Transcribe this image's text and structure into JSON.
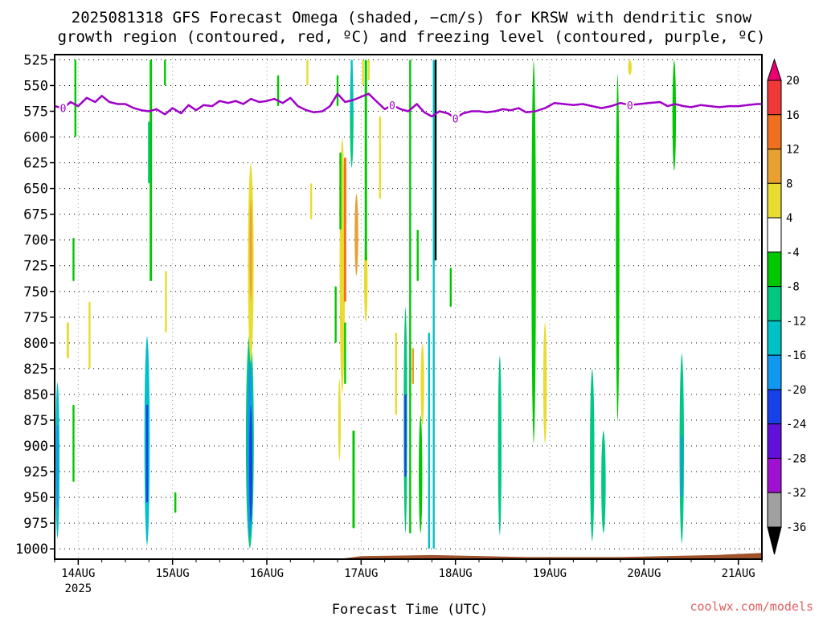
{
  "chart_data": {
    "type": "heatmap",
    "title_lines": [
      "2025081318 GFS Forecast Omega (shaded, −cm/s) for KRSW with dendritic snow",
      "growth region (contoured, red, ºC) and freezing level (contoured, purple, ºC)"
    ],
    "xlabel": "Forecast Time (UTC)",
    "x_ticks": [
      {
        "label": "14AUG",
        "year": "2025",
        "t": 0.25
      },
      {
        "label": "15AUG",
        "t": 1.25
      },
      {
        "label": "16AUG",
        "t": 2.25
      },
      {
        "label": "17AUG",
        "t": 3.25
      },
      {
        "label": "18AUG",
        "t": 4.25
      },
      {
        "label": "19AUG",
        "t": 5.25
      },
      {
        "label": "20AUG",
        "t": 6.25
      },
      {
        "label": "21AUG",
        "t": 7.25
      }
    ],
    "x_range": [
      0,
      7.5
    ],
    "y_levels": [
      "525",
      "550",
      "575",
      "600",
      "625",
      "650",
      "675",
      "700",
      "725",
      "750",
      "775",
      "800",
      "825",
      "850",
      "875",
      "900",
      "925",
      "950",
      "975",
      "1000"
    ],
    "y_range": [
      520,
      1010
    ],
    "colorbar": {
      "ticks": [
        "20",
        "16",
        "12",
        "8",
        "4",
        "-4",
        "-8",
        "-12",
        "-16",
        "-20",
        "-24",
        "-28",
        "-32",
        "-36"
      ],
      "colors": [
        "#e8006f",
        "#f03838",
        "#f07020",
        "#e8a030",
        "#e8dc30",
        "#ffffff",
        "#00c800",
        "#00c880",
        "#00c0c8",
        "#1098f0",
        "#1840e8",
        "#6010d8",
        "#a010d0",
        "#a0a0a0",
        "#000000"
      ]
    },
    "freezing_level": {
      "label": "0",
      "color": "#a000c8",
      "points": [
        [
          0.0,
          570
        ],
        [
          0.09,
          572
        ],
        [
          0.17,
          566
        ],
        [
          0.25,
          570
        ],
        [
          0.34,
          562
        ],
        [
          0.43,
          566
        ],
        [
          0.5,
          560
        ],
        [
          0.58,
          566
        ],
        [
          0.67,
          568
        ],
        [
          0.75,
          568
        ],
        [
          0.84,
          572
        ],
        [
          0.92,
          574
        ],
        [
          1.0,
          575
        ],
        [
          1.08,
          573
        ],
        [
          1.17,
          578
        ],
        [
          1.25,
          572
        ],
        [
          1.34,
          577
        ],
        [
          1.42,
          569
        ],
        [
          1.5,
          574
        ],
        [
          1.58,
          569
        ],
        [
          1.67,
          570
        ],
        [
          1.75,
          565
        ],
        [
          1.84,
          567
        ],
        [
          1.92,
          565
        ],
        [
          2.0,
          568
        ],
        [
          2.08,
          563
        ],
        [
          2.17,
          566
        ],
        [
          2.25,
          565
        ],
        [
          2.33,
          563
        ],
        [
          2.42,
          567
        ],
        [
          2.5,
          562
        ],
        [
          2.58,
          570
        ],
        [
          2.67,
          574
        ],
        [
          2.75,
          576
        ],
        [
          2.84,
          575
        ],
        [
          2.92,
          570
        ],
        [
          3.0,
          558
        ],
        [
          3.08,
          566
        ],
        [
          3.17,
          564
        ],
        [
          3.25,
          561
        ],
        [
          3.33,
          558
        ],
        [
          3.42,
          566
        ],
        [
          3.5,
          573
        ],
        [
          3.58,
          569
        ],
        [
          3.67,
          573
        ],
        [
          3.75,
          575
        ],
        [
          3.84,
          568
        ],
        [
          3.92,
          576
        ],
        [
          4.0,
          580
        ],
        [
          4.08,
          575
        ],
        [
          4.17,
          577
        ],
        [
          4.25,
          582
        ],
        [
          4.33,
          577
        ],
        [
          4.42,
          575
        ],
        [
          4.5,
          575
        ],
        [
          4.58,
          576
        ],
        [
          4.67,
          575
        ],
        [
          4.75,
          573
        ],
        [
          4.84,
          574
        ],
        [
          4.92,
          572
        ],
        [
          5.0,
          576
        ],
        [
          5.1,
          575
        ],
        [
          5.2,
          572
        ],
        [
          5.3,
          567
        ],
        [
          5.4,
          568
        ],
        [
          5.5,
          569
        ],
        [
          5.6,
          568
        ],
        [
          5.7,
          570
        ],
        [
          5.8,
          572
        ],
        [
          5.9,
          570
        ],
        [
          6.0,
          567
        ],
        [
          6.1,
          569
        ],
        [
          6.2,
          568
        ],
        [
          6.3,
          567
        ],
        [
          6.42,
          566
        ],
        [
          6.5,
          570
        ],
        [
          6.58,
          568
        ],
        [
          6.67,
          570
        ],
        [
          6.75,
          571
        ],
        [
          6.85,
          569
        ],
        [
          6.95,
          570
        ],
        [
          7.05,
          571
        ],
        [
          7.15,
          570
        ],
        [
          7.25,
          570
        ],
        [
          7.35,
          569
        ],
        [
          7.45,
          568
        ],
        [
          7.5,
          568
        ]
      ]
    },
    "surface_pressure": [
      [
        0.0,
        1010
      ],
      [
        0.5,
        1012
      ],
      [
        1.0,
        1011
      ],
      [
        2.0,
        1012
      ],
      [
        3.0,
        1010
      ],
      [
        3.25,
        1007
      ],
      [
        4.0,
        1006
      ],
      [
        5.0,
        1008
      ],
      [
        6.0,
        1008
      ],
      [
        7.0,
        1006
      ],
      [
        7.5,
        1004
      ]
    ],
    "omega_regions": [
      {
        "t": 0.03,
        "p0": 838,
        "p1": 990,
        "w": 0.045,
        "v": -12
      },
      {
        "t": 0.03,
        "p0": 880,
        "p1": 960,
        "w": 0.02,
        "v": -16
      },
      {
        "t": 0.22,
        "p0": 525,
        "p1": 600,
        "w": 0.02,
        "v": -6
      },
      {
        "t": 0.2,
        "p0": 698,
        "p1": 740,
        "w": 0.012,
        "v": -6
      },
      {
        "t": 0.2,
        "p0": 860,
        "p1": 935,
        "w": 0.012,
        "v": -6
      },
      {
        "t": 0.14,
        "p0": 780,
        "p1": 815,
        "w": 0.025,
        "v": 6
      },
      {
        "t": 0.37,
        "p0": 760,
        "p1": 825,
        "w": 0.02,
        "v": 6
      },
      {
        "t": 0.98,
        "p0": 793,
        "p1": 997,
        "w": 0.06,
        "v": -12
      },
      {
        "t": 0.98,
        "p0": 860,
        "p1": 955,
        "w": 0.02,
        "v": -20
      },
      {
        "t": 1.02,
        "p0": 525,
        "p1": 740,
        "w": 0.025,
        "v": -6
      },
      {
        "t": 1.0,
        "p0": 585,
        "p1": 645,
        "w": 0.02,
        "v": -8
      },
      {
        "t": 1.17,
        "p0": 525,
        "p1": 550,
        "w": 0.012,
        "v": -6
      },
      {
        "t": 1.18,
        "p0": 730,
        "p1": 790,
        "w": 0.015,
        "v": 6
      },
      {
        "t": 1.28,
        "p0": 945,
        "p1": 965,
        "w": 0.012,
        "v": -6
      },
      {
        "t": 2.07,
        "p0": 788,
        "p1": 1000,
        "w": 0.09,
        "v": -10
      },
      {
        "t": 2.07,
        "p0": 815,
        "p1": 990,
        "w": 0.055,
        "v": -16
      },
      {
        "t": 2.08,
        "p0": 860,
        "p1": 975,
        "w": 0.035,
        "v": -20
      },
      {
        "t": 2.08,
        "p0": 625,
        "p1": 820,
        "w": 0.065,
        "v": 6
      },
      {
        "t": 2.08,
        "p0": 660,
        "p1": 760,
        "w": 0.028,
        "v": 10
      },
      {
        "t": 2.68,
        "p0": 525,
        "p1": 550,
        "w": 0.015,
        "v": 6
      },
      {
        "t": 2.37,
        "p0": 540,
        "p1": 570,
        "w": 0.012,
        "v": -6
      },
      {
        "t": 3.0,
        "p0": 540,
        "p1": 570,
        "w": 0.012,
        "v": -6
      },
      {
        "t": 2.72,
        "p0": 645,
        "p1": 680,
        "w": 0.02,
        "v": 6
      },
      {
        "t": 3.05,
        "p0": 600,
        "p1": 850,
        "w": 0.06,
        "v": 6
      },
      {
        "t": 3.08,
        "p0": 620,
        "p1": 760,
        "w": 0.025,
        "v": 12
      },
      {
        "t": 3.03,
        "p0": 615,
        "p1": 690,
        "w": 0.015,
        "v": -6
      },
      {
        "t": 3.15,
        "p0": 525,
        "p1": 630,
        "w": 0.04,
        "v": -8
      },
      {
        "t": 3.15,
        "p0": 525,
        "p1": 580,
        "w": 0.015,
        "v": -12
      },
      {
        "t": 3.2,
        "p0": 655,
        "p1": 735,
        "w": 0.04,
        "v": 8
      },
      {
        "t": 3.3,
        "p0": 700,
        "p1": 780,
        "w": 0.04,
        "v": 6
      },
      {
        "t": 3.27,
        "p0": 525,
        "p1": 550,
        "w": 0.012,
        "v": 6
      },
      {
        "t": 2.98,
        "p0": 745,
        "p1": 800,
        "w": 0.02,
        "v": -6
      },
      {
        "t": 3.02,
        "p0": 835,
        "p1": 915,
        "w": 0.03,
        "v": 6
      },
      {
        "t": 3.08,
        "p0": 780,
        "p1": 840,
        "w": 0.015,
        "v": -6
      },
      {
        "t": 3.17,
        "p0": 885,
        "p1": 980,
        "w": 0.025,
        "v": -6
      },
      {
        "t": 3.3,
        "p0": 525,
        "p1": 720,
        "w": 0.025,
        "v": -6
      },
      {
        "t": 3.33,
        "p0": 525,
        "p1": 545,
        "w": 0.012,
        "v": 6
      },
      {
        "t": 3.45,
        "p0": 580,
        "p1": 660,
        "w": 0.015,
        "v": 6
      },
      {
        "t": 3.62,
        "p0": 790,
        "p1": 870,
        "w": 0.015,
        "v": 6
      },
      {
        "t": 3.72,
        "p0": 765,
        "p1": 985,
        "w": 0.04,
        "v": -10
      },
      {
        "t": 3.72,
        "p0": 850,
        "p1": 930,
        "w": 0.012,
        "v": -20
      },
      {
        "t": 3.77,
        "p0": 525,
        "p1": 985,
        "w": 0.012,
        "v": -6
      },
      {
        "t": 3.85,
        "p0": 690,
        "p1": 740,
        "w": 0.012,
        "v": -6
      },
      {
        "t": 3.9,
        "p0": 800,
        "p1": 880,
        "w": 0.04,
        "v": 6
      },
      {
        "t": 3.88,
        "p0": 870,
        "p1": 985,
        "w": 0.04,
        "v": -6
      },
      {
        "t": 3.97,
        "p0": 790,
        "p1": 1000,
        "w": 0.02,
        "v": -12
      },
      {
        "t": 4.02,
        "p0": 525,
        "p1": 1000,
        "w": 0.02,
        "v": -14
      },
      {
        "t": 4.04,
        "p0": 525,
        "p1": 720,
        "w": 0.006,
        "v": -36
      },
      {
        "t": 4.2,
        "p0": 727,
        "p1": 765,
        "w": 0.012,
        "v": -6
      },
      {
        "t": 3.8,
        "p0": 805,
        "p1": 840,
        "w": 0.012,
        "v": 10
      },
      {
        "t": 4.72,
        "p0": 812,
        "p1": 987,
        "w": 0.04,
        "v": -10
      },
      {
        "t": 5.08,
        "p0": 525,
        "p1": 898,
        "w": 0.05,
        "v": -7
      },
      {
        "t": 5.2,
        "p0": 780,
        "p1": 898,
        "w": 0.04,
        "v": 6
      },
      {
        "t": 5.7,
        "p0": 825,
        "p1": 993,
        "w": 0.05,
        "v": -10
      },
      {
        "t": 5.82,
        "p0": 885,
        "p1": 985,
        "w": 0.05,
        "v": -10
      },
      {
        "t": 5.97,
        "p0": 538,
        "p1": 877,
        "w": 0.04,
        "v": -7
      },
      {
        "t": 6.1,
        "p0": 525,
        "p1": 540,
        "w": 0.04,
        "v": 6
      },
      {
        "t": 6.57,
        "p0": 525,
        "p1": 633,
        "w": 0.04,
        "v": -7
      },
      {
        "t": 6.65,
        "p0": 810,
        "p1": 995,
        "w": 0.05,
        "v": -10
      },
      {
        "t": 6.65,
        "p0": 890,
        "p1": 950,
        "w": 0.02,
        "v": -16
      }
    ]
  },
  "credit": "coolwx.com/models"
}
